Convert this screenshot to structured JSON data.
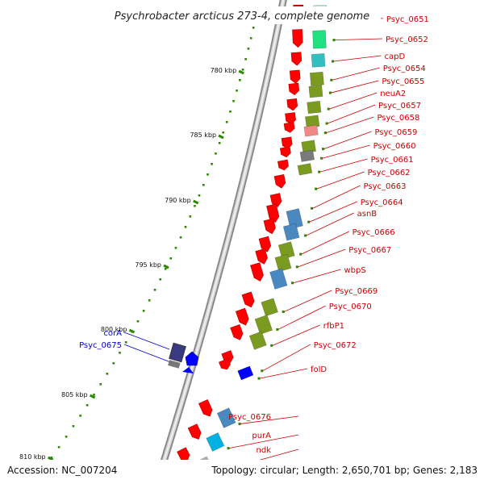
{
  "title": "Psychrobacter arcticus 273-4, complete genome",
  "footer": {
    "accession": "Accession: NC_007204",
    "topology": "Topology: circular; Length: 2,650,701 bp; Genes: 2,183"
  },
  "colors": {
    "forward_gene": "#ff0000",
    "reverse_gene": "#0000ff",
    "forward_label": "#cc0000",
    "reverse_label": "#0000cc",
    "scale_dots": "#2a8a00",
    "backbone": "#9a9a9a"
  },
  "scale_ticks": [
    {
      "label": "780 kbp"
    },
    {
      "label": "785 kbp"
    },
    {
      "label": "790 kbp"
    },
    {
      "label": "795 kbp"
    },
    {
      "label": "800 kbp"
    },
    {
      "label": "805 kbp"
    },
    {
      "label": "810 kbp"
    }
  ],
  "forward_genes": [
    {
      "label": "Psyc_0651",
      "cog_color": "#a8e0d8"
    },
    {
      "label": "Psyc_0652",
      "cog_color": "#20e080"
    },
    {
      "label": "capD",
      "cog_color": "#30c0c0"
    },
    {
      "label": "Psyc_0654",
      "cog_color": "#7a9a20"
    },
    {
      "label": "Psyc_0655",
      "cog_color": "#7a9a20"
    },
    {
      "label": "neuA2",
      "cog_color": "#7a9a20"
    },
    {
      "label": "Psyc_0657",
      "cog_color": "#7a9a20"
    },
    {
      "label": "Psyc_0658",
      "cog_color": "#f08888"
    },
    {
      "label": "Psyc_0659",
      "cog_color": "#7a9a20"
    },
    {
      "label": "Psyc_0660",
      "cog_color": "#7a7a7a"
    },
    {
      "label": "Psyc_0661",
      "cog_color": "#7a9a20"
    },
    {
      "label": "Psyc_0662",
      "cog_color": ""
    },
    {
      "label": "Psyc_0663",
      "cog_color": ""
    },
    {
      "label": "Psyc_0664",
      "cog_color": "#4a88c0"
    },
    {
      "label": "asnB",
      "cog_color": "#4a88c0"
    },
    {
      "label": "Psyc_0666",
      "cog_color": "#7a9a20"
    },
    {
      "label": "Psyc_0667",
      "cog_color": "#7a9a20"
    },
    {
      "label": "wbpS",
      "cog_color": "#4a88c0"
    },
    {
      "label": "Psyc_0669",
      "cog_color": "#7a9a20"
    },
    {
      "label": "Psyc_0670",
      "cog_color": "#7a9a20"
    },
    {
      "label": "rfbP1",
      "cog_color": "#7a9a20"
    },
    {
      "label": "Psyc_0672",
      "cog_color": ""
    },
    {
      "label": "folD",
      "cog_color": "#0000ff"
    },
    {
      "label": "Psyc_0676",
      "cog_color": "#4a88c0"
    },
    {
      "label": "purA",
      "cog_color": "#00b0e0"
    },
    {
      "label": "ndk",
      "cog_color": "#b0b0b0"
    }
  ],
  "reverse_genes": [
    {
      "label": "corA",
      "cog_color": "#3a3a80"
    },
    {
      "label": "Psyc_0675",
      "cog_color": "#0000ff"
    }
  ]
}
